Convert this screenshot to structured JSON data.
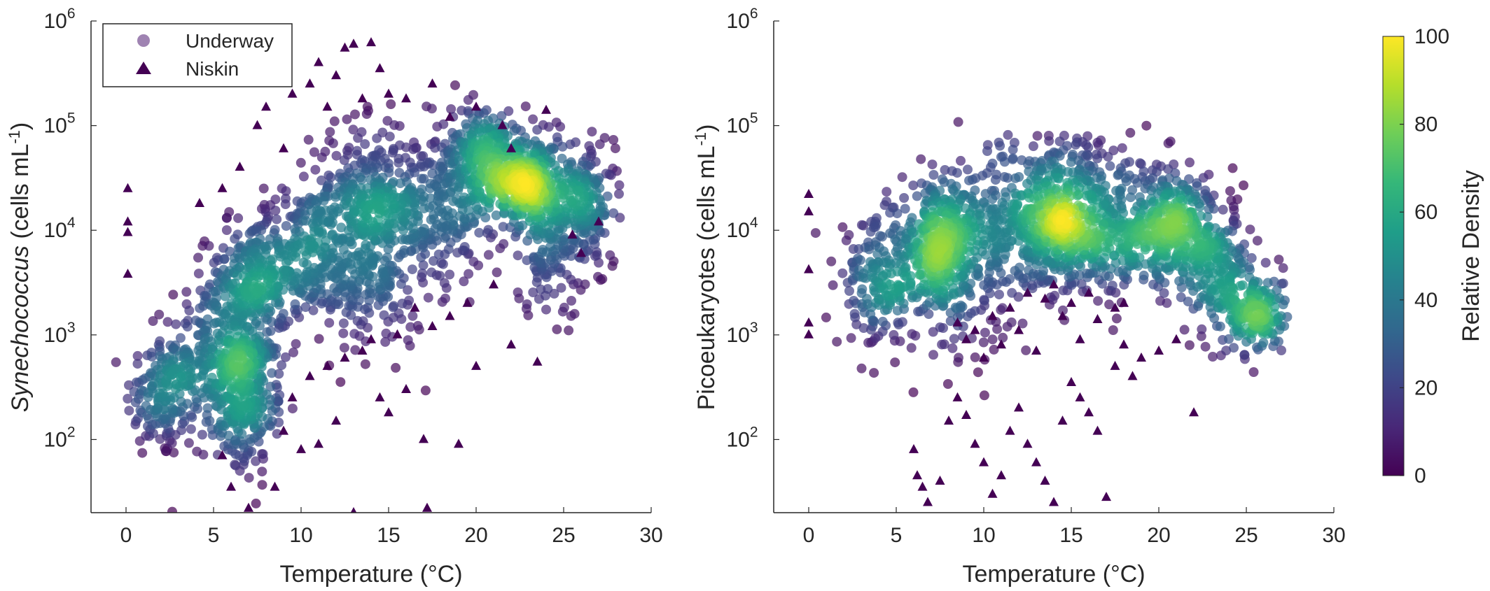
{
  "chart_data": [
    {
      "type": "scatter",
      "panel": "left",
      "xlabel": "Temperature (°C)",
      "ylabel_italic": "Synechococcus",
      "ylabel_rest": " (cells mL",
      "ylabel_sup": "-1",
      "ylabel_close": ")",
      "xlim": [
        -2,
        30
      ],
      "ylim": [
        20,
        1000000
      ],
      "yscale": "log",
      "xticks": [
        0,
        5,
        10,
        15,
        20,
        25,
        30
      ],
      "xtick_labels": [
        "0",
        "5",
        "10",
        "15",
        "20",
        "25",
        "30"
      ],
      "yticks": [
        {
          "base": "10",
          "exp": "2",
          "value": 100
        },
        {
          "base": "10",
          "exp": "3",
          "value": 1000
        },
        {
          "base": "10",
          "exp": "4",
          "value": 10000
        },
        {
          "base": "10",
          "exp": "5",
          "value": 100000
        },
        {
          "base": "10",
          "exp": "6",
          "value": 1000000
        }
      ],
      "grid": false,
      "legend": {
        "placement": "top-left",
        "entries": [
          {
            "label": "Underway",
            "marker": "circle"
          },
          {
            "label": "Niskin",
            "marker": "triangle"
          }
        ]
      },
      "series": [
        {
          "name": "Underway",
          "marker": "circle",
          "density_clusters": [
            {
              "x": 2.0,
              "y": 250,
              "sx": 1.0,
              "sy": 0.3,
              "n": 140
            },
            {
              "x": 4.5,
              "y": 600,
              "sx": 1.2,
              "sy": 0.35,
              "n": 200
            },
            {
              "x": 7.0,
              "y": 380,
              "sx": 0.9,
              "sy": 0.25,
              "n": 220
            },
            {
              "x": 7.0,
              "y": 2500,
              "sx": 1.2,
              "sy": 0.3,
              "n": 240
            },
            {
              "x": 6.5,
              "y": 150,
              "sx": 1.0,
              "sy": 0.3,
              "n": 110
            },
            {
              "x": 10.0,
              "y": 6000,
              "sx": 1.8,
              "sy": 0.3,
              "n": 260
            },
            {
              "x": 13.5,
              "y": 20000,
              "sx": 1.5,
              "sy": 0.35,
              "n": 280
            },
            {
              "x": 14.0,
              "y": 3000,
              "sx": 1.5,
              "sy": 0.35,
              "n": 160
            },
            {
              "x": 17.0,
              "y": 15000,
              "sx": 1.8,
              "sy": 0.35,
              "n": 260
            },
            {
              "x": 20.5,
              "y": 50000,
              "sx": 1.5,
              "sy": 0.25,
              "n": 300
            },
            {
              "x": 23.0,
              "y": 28000,
              "sx": 1.2,
              "sy": 0.2,
              "n": 320
            },
            {
              "x": 24.5,
              "y": 8000,
              "sx": 1.5,
              "sy": 0.35,
              "n": 200
            },
            {
              "x": 26.5,
              "y": 20000,
              "sx": 0.7,
              "sy": 0.25,
              "n": 120
            }
          ]
        },
        {
          "name": "Niskin",
          "marker": "triangle",
          "points": [
            [
              0.1,
              25000
            ],
            [
              0.1,
              12000
            ],
            [
              0.1,
              9500
            ],
            [
              0.1,
              3800
            ],
            [
              4.2,
              18000
            ],
            [
              5.5,
              70
            ],
            [
              6.0,
              35
            ],
            [
              7.0,
              22
            ],
            [
              8.5,
              35
            ],
            [
              9.0,
              120
            ],
            [
              10.0,
              80
            ],
            [
              11.0,
              90
            ],
            [
              12.0,
              150
            ],
            [
              13.0,
              20
            ],
            [
              14.5,
              250
            ],
            [
              15.0,
              180
            ],
            [
              16.0,
              300
            ],
            [
              17.0,
              100
            ],
            [
              17.2,
              22
            ],
            [
              19.0,
              90
            ],
            [
              20.0,
              500
            ],
            [
              22.0,
              800
            ],
            [
              23.5,
              550
            ],
            [
              18.5,
              1500
            ],
            [
              17.5,
              1200
            ],
            [
              16.5,
              1800
            ],
            [
              15.5,
              1000
            ],
            [
              14.0,
              900
            ],
            [
              13.5,
              700
            ],
            [
              12.5,
              600
            ],
            [
              11.5,
              500
            ],
            [
              10.5,
              400
            ],
            [
              9.5,
              250
            ],
            [
              19.5,
              2000
            ],
            [
              21.0,
              3000
            ],
            [
              25.5,
              9000
            ],
            [
              26.0,
              6000
            ],
            [
              27.0,
              12000
            ],
            [
              13.0,
              600000
            ],
            [
              14.0,
              620000
            ],
            [
              12.5,
              550000
            ],
            [
              11.0,
              400000
            ],
            [
              12.0,
              300000
            ],
            [
              10.5,
              250000
            ],
            [
              9.5,
              200000
            ],
            [
              8.0,
              150000
            ],
            [
              7.5,
              100000
            ],
            [
              15.0,
              200000
            ],
            [
              16.0,
              180000
            ],
            [
              17.5,
              250000
            ],
            [
              20.0,
              150000
            ],
            [
              18.5,
              120000
            ],
            [
              21.5,
              100000
            ],
            [
              9.0,
              60000
            ],
            [
              6.5,
              40000
            ],
            [
              5.5,
              25000
            ],
            [
              11.5,
              150000
            ],
            [
              13.5,
              180000
            ],
            [
              14.5,
              350000
            ],
            [
              22.0,
              60000
            ],
            [
              24.0,
              140000
            ]
          ]
        }
      ]
    },
    {
      "type": "scatter",
      "panel": "right",
      "xlabel": "Temperature (°C)",
      "ylabel_italic": "",
      "ylabel_rest": "Picoeukaryotes (cells mL",
      "ylabel_sup": "-1",
      "ylabel_close": ")",
      "xlim": [
        -2,
        30
      ],
      "ylim": [
        20,
        1000000
      ],
      "yscale": "log",
      "xticks": [
        0,
        5,
        10,
        15,
        20,
        25,
        30
      ],
      "xtick_labels": [
        "0",
        "5",
        "10",
        "15",
        "20",
        "25",
        "30"
      ],
      "yticks": [
        {
          "base": "10",
          "exp": "2",
          "value": 100
        },
        {
          "base": "10",
          "exp": "3",
          "value": 1000
        },
        {
          "base": "10",
          "exp": "4",
          "value": 10000
        },
        {
          "base": "10",
          "exp": "5",
          "value": 100000
        },
        {
          "base": "10",
          "exp": "6",
          "value": 1000000
        }
      ],
      "grid": false,
      "series": [
        {
          "name": "Underway",
          "marker": "circle",
          "density_clusters": [
            {
              "x": 4.0,
              "y": 3000,
              "sx": 1.2,
              "sy": 0.3,
              "n": 180
            },
            {
              "x": 7.3,
              "y": 8500,
              "sx": 1.0,
              "sy": 0.25,
              "n": 260
            },
            {
              "x": 8.5,
              "y": 3000,
              "sx": 1.5,
              "sy": 0.3,
              "n": 180
            },
            {
              "x": 11.0,
              "y": 12000,
              "sx": 1.8,
              "sy": 0.3,
              "n": 220
            },
            {
              "x": 14.0,
              "y": 9000,
              "sx": 1.2,
              "sy": 0.25,
              "n": 260
            },
            {
              "x": 16.5,
              "y": 8000,
              "sx": 1.5,
              "sy": 0.3,
              "n": 200
            },
            {
              "x": 19.5,
              "y": 12000,
              "sx": 1.5,
              "sy": 0.3,
              "n": 200
            },
            {
              "x": 21.5,
              "y": 10000,
              "sx": 1.2,
              "sy": 0.25,
              "n": 220
            },
            {
              "x": 23.5,
              "y": 4000,
              "sx": 1.0,
              "sy": 0.3,
              "n": 160
            },
            {
              "x": 25.5,
              "y": 1600,
              "sx": 0.8,
              "sy": 0.2,
              "n": 180
            },
            {
              "x": 15.0,
              "y": 40000,
              "sx": 2.0,
              "sy": 0.2,
              "n": 120
            }
          ]
        },
        {
          "name": "Niskin",
          "marker": "triangle",
          "points": [
            [
              0.0,
              22000
            ],
            [
              0.0,
              15000
            ],
            [
              0.0,
              4200
            ],
            [
              0.0,
              1300
            ],
            [
              0.0,
              1000
            ],
            [
              6.0,
              80
            ],
            [
              6.2,
              45
            ],
            [
              6.5,
              35
            ],
            [
              6.8,
              25
            ],
            [
              7.5,
              40
            ],
            [
              8.0,
              150
            ],
            [
              8.5,
              250
            ],
            [
              9.0,
              170
            ],
            [
              9.5,
              90
            ],
            [
              10.0,
              60
            ],
            [
              10.5,
              30
            ],
            [
              11.0,
              45
            ],
            [
              11.5,
              120
            ],
            [
              12.0,
              200
            ],
            [
              12.5,
              90
            ],
            [
              13.0,
              60
            ],
            [
              13.5,
              40
            ],
            [
              14.0,
              25
            ],
            [
              14.5,
              150
            ],
            [
              15.0,
              350
            ],
            [
              15.5,
              250
            ],
            [
              16.0,
              180
            ],
            [
              16.5,
              120
            ],
            [
              17.0,
              28
            ],
            [
              17.5,
              500
            ],
            [
              18.0,
              800
            ],
            [
              18.5,
              400
            ],
            [
              19.0,
              600
            ],
            [
              20.0,
              700
            ],
            [
              21.0,
              900
            ],
            [
              22.0,
              180
            ],
            [
              13.0,
              700
            ],
            [
              12.0,
              1100
            ],
            [
              11.0,
              800
            ],
            [
              10.0,
              600
            ],
            [
              9.0,
              900
            ],
            [
              8.5,
              1300
            ],
            [
              14.5,
              1500
            ],
            [
              15.5,
              900
            ],
            [
              16.5,
              1400
            ],
            [
              17.5,
              1800
            ],
            [
              13.5,
              2200
            ],
            [
              12.5,
              2500
            ],
            [
              11.5,
              1800
            ],
            [
              10.5,
              1500
            ],
            [
              9.5,
              1100
            ],
            [
              14.0,
              3000
            ],
            [
              15.0,
              2000
            ],
            [
              16.0,
              2500
            ],
            [
              18.0,
              2000
            ]
          ]
        }
      ]
    }
  ],
  "colorbar": {
    "label": "Relative Density",
    "ticks": [
      "0",
      "20",
      "40",
      "60",
      "80",
      "100"
    ],
    "min": 0,
    "max": 100,
    "colormap": "viridis",
    "stops": [
      "#440154",
      "#482878",
      "#3e4989",
      "#31688e",
      "#26828e",
      "#1f9e89",
      "#35b779",
      "#6ece58",
      "#b5de2b",
      "#fde725"
    ]
  }
}
